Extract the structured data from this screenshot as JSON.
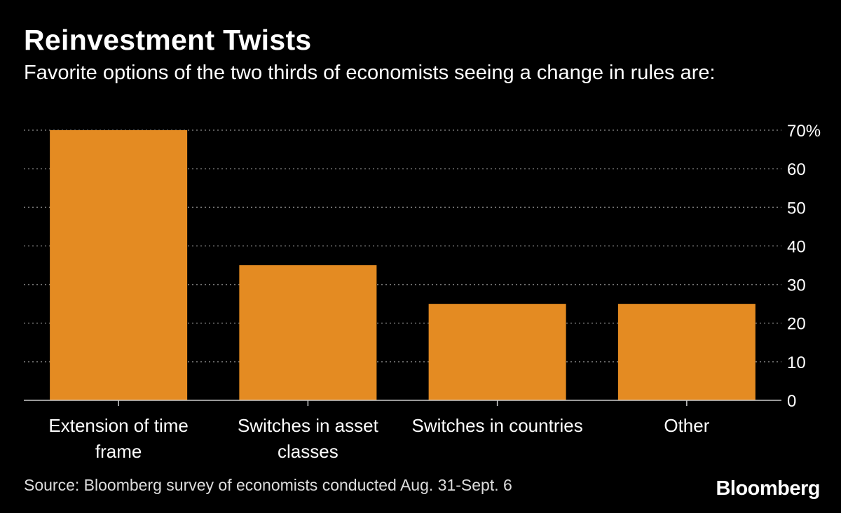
{
  "header": {
    "title": "Reinvestment Twists",
    "subtitle": "Favorite options of the two thirds of economists seeing a change in rules are:"
  },
  "footer": {
    "source": "Source: Bloomberg survey of economists conducted Aug. 31-Sept. 6",
    "brand": "Bloomberg"
  },
  "colors": {
    "background": "#000000",
    "bar": "#E48B22",
    "grid": "#777777",
    "text": "#ffffff"
  },
  "chart_data": {
    "type": "bar",
    "title": "Reinvestment Twists",
    "subtitle": "Favorite options of the two thirds of economists seeing a change in rules are:",
    "categories": [
      [
        "Extension of time",
        "frame"
      ],
      [
        "Switches in asset",
        "classes"
      ],
      [
        "Switches in countries"
      ],
      [
        "Other"
      ]
    ],
    "values": [
      70,
      35,
      25,
      25
    ],
    "ylim": [
      0,
      70
    ],
    "yticks": [
      0,
      10,
      20,
      30,
      40,
      50,
      60,
      70
    ],
    "ytick_labels": [
      "0",
      "10",
      "20",
      "30",
      "40",
      "50",
      "60",
      "70%"
    ],
    "y_axis_side": "right",
    "grid": true,
    "xlabel": "",
    "ylabel": ""
  }
}
